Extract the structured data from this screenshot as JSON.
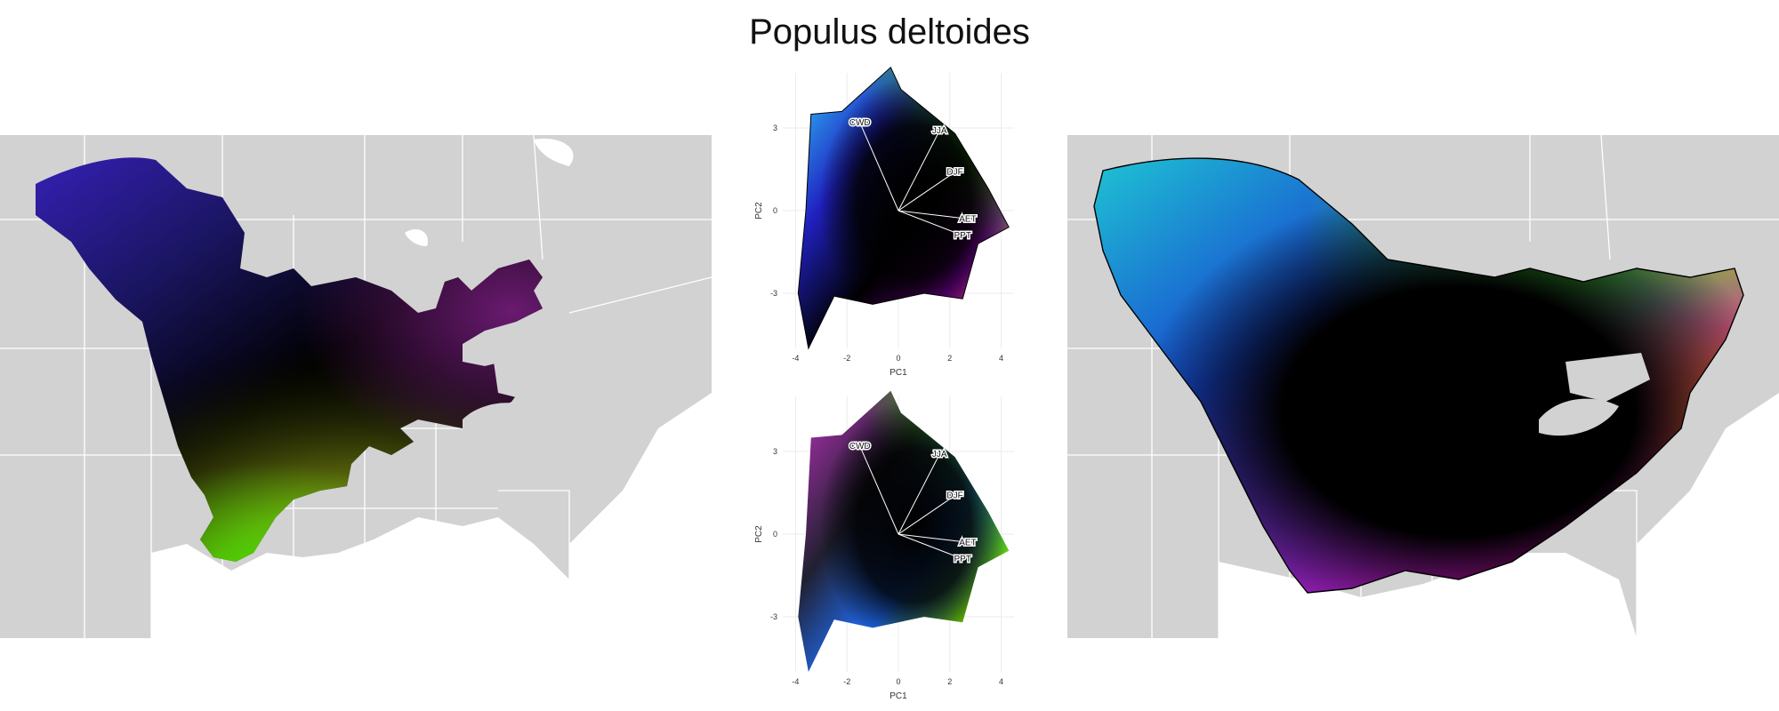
{
  "title": "Populus deltoides",
  "colors": {
    "map_background": "#d2d2d2",
    "state_borders": "#ffffff",
    "range_outline": "#000000",
    "loading_arrows": "#ffffff"
  },
  "chart_data": [
    {
      "type": "scatter",
      "name": "pca-top",
      "xlabel": "PC1",
      "ylabel": "PC2",
      "xlim": [
        -4.5,
        4.5
      ],
      "ylim": [
        -5,
        5
      ],
      "xticks": [
        "-4",
        "-2",
        "0",
        "2",
        "4"
      ],
      "yticks": [
        "3",
        "0",
        "-3"
      ],
      "grid": true,
      "loadings": [
        {
          "label": "CWD",
          "x": -1.5,
          "y": 3.2
        },
        {
          "label": "JJA",
          "x": 1.6,
          "y": 2.9
        },
        {
          "label": "DJF",
          "x": 2.2,
          "y": 1.4
        },
        {
          "label": "AET",
          "x": 2.7,
          "y": -0.3
        },
        {
          "label": "PPT",
          "x": 2.5,
          "y": -0.9
        }
      ]
    },
    {
      "type": "scatter",
      "name": "pca-bottom",
      "xlabel": "PC1",
      "ylabel": "PC2",
      "xlim": [
        -4.5,
        4.5
      ],
      "ylim": [
        -5,
        5
      ],
      "xticks": [
        "-4",
        "-2",
        "0",
        "2",
        "4"
      ],
      "yticks": [
        "3",
        "0",
        "-3"
      ],
      "grid": true,
      "loadings": [
        {
          "label": "CWD",
          "x": -1.5,
          "y": 3.2
        },
        {
          "label": "JJA",
          "x": 1.6,
          "y": 2.9
        },
        {
          "label": "DJF",
          "x": 2.2,
          "y": 1.4
        },
        {
          "label": "AET",
          "x": 2.7,
          "y": -0.3
        },
        {
          "label": "PPT",
          "x": 2.5,
          "y": -0.9
        }
      ]
    }
  ]
}
